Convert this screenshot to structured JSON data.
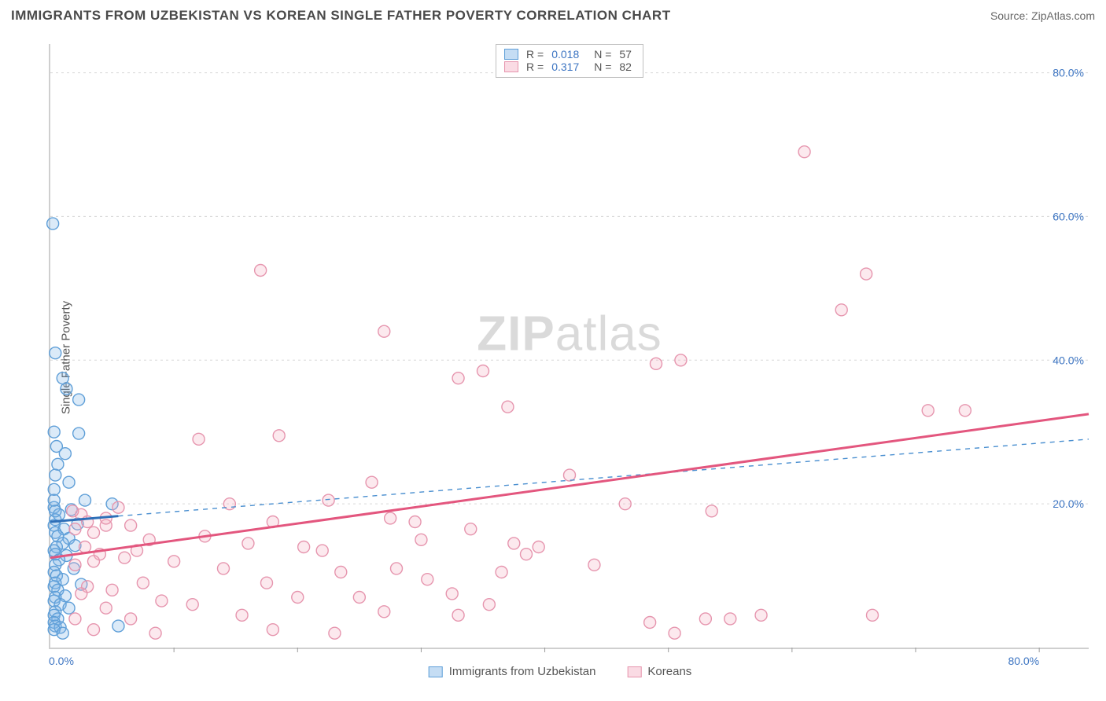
{
  "header": {
    "title": "IMMIGRANTS FROM UZBEKISTAN VS KOREAN SINGLE FATHER POVERTY CORRELATION CHART",
    "source": "Source: ZipAtlas.com"
  },
  "watermark": {
    "bold": "ZIP",
    "rest": "atlas"
  },
  "chart": {
    "type": "scatter",
    "ylabel": "Single Father Poverty",
    "background_color": "#ffffff",
    "grid_color": "#d7d7d7",
    "axis_color": "#cfcfcf",
    "tick_label_color": "#3d75c2",
    "tick_label_fontsize": 14,
    "label_fontsize": 15,
    "xlim": [
      0,
      84
    ],
    "ylim": [
      0,
      84
    ],
    "xtick_step": 10,
    "ytick_step": 20,
    "x_visible_labels": [
      {
        "v": 0,
        "t": "0.0%"
      },
      {
        "v": 80,
        "t": "80.0%"
      }
    ],
    "y_visible_labels": [
      {
        "v": 20,
        "t": "20.0%"
      },
      {
        "v": 40,
        "t": "40.0%"
      },
      {
        "v": 60,
        "t": "60.0%"
      },
      {
        "v": 80,
        "t": "80.0%"
      }
    ],
    "marker_radius": 7.5,
    "series": [
      {
        "id": "uzbek",
        "legend_label": "Immigrants from Uzbekistan",
        "R": "0.018",
        "N": "57",
        "point_fill": "rgba(127,179,230,0.28)",
        "point_stroke": "#5f9fd8",
        "reg_color": "#2e6fb8",
        "reg_solid": {
          "x1": 0,
          "y1": 17.5,
          "x2": 5.5,
          "y2": 18.3
        },
        "reg_dashed": {
          "x1": 5.5,
          "y1": 18.3,
          "x2": 84,
          "y2": 29.0
        },
        "points": [
          [
            0.2,
            59.0
          ],
          [
            0.4,
            41.0
          ],
          [
            1.0,
            37.5
          ],
          [
            1.3,
            36.0
          ],
          [
            2.3,
            34.5
          ],
          [
            0.3,
            30.0
          ],
          [
            2.3,
            29.8
          ],
          [
            0.5,
            28.0
          ],
          [
            1.2,
            27.0
          ],
          [
            0.6,
            25.5
          ],
          [
            0.4,
            24.0
          ],
          [
            1.5,
            23.0
          ],
          [
            0.3,
            22.0
          ],
          [
            5.0,
            20.0
          ],
          [
            0.3,
            19.5
          ],
          [
            1.7,
            19.2
          ],
          [
            0.7,
            18.5
          ],
          [
            2.8,
            20.5
          ],
          [
            0.4,
            17.8
          ],
          [
            0.3,
            17.0
          ],
          [
            1.1,
            16.5
          ],
          [
            2.2,
            17.2
          ],
          [
            0.4,
            16.0
          ],
          [
            0.6,
            15.5
          ],
          [
            1.5,
            15.2
          ],
          [
            1.0,
            14.5
          ],
          [
            0.5,
            14.0
          ],
          [
            2.0,
            14.2
          ],
          [
            0.3,
            13.5
          ],
          [
            0.4,
            13.0
          ],
          [
            1.3,
            12.8
          ],
          [
            0.7,
            12.2
          ],
          [
            0.4,
            11.5
          ],
          [
            1.9,
            11.0
          ],
          [
            0.3,
            10.5
          ],
          [
            0.5,
            10.0
          ],
          [
            1.0,
            9.5
          ],
          [
            0.4,
            9.0
          ],
          [
            2.5,
            8.8
          ],
          [
            0.3,
            8.5
          ],
          [
            0.6,
            8.0
          ],
          [
            1.2,
            7.2
          ],
          [
            0.4,
            7.0
          ],
          [
            0.3,
            6.5
          ],
          [
            0.8,
            6.0
          ],
          [
            1.5,
            5.5
          ],
          [
            0.4,
            5.0
          ],
          [
            0.3,
            4.5
          ],
          [
            0.6,
            4.0
          ],
          [
            0.3,
            3.5
          ],
          [
            5.5,
            3.0
          ],
          [
            0.4,
            3.0
          ],
          [
            0.8,
            2.8
          ],
          [
            0.3,
            2.5
          ],
          [
            1.0,
            2.0
          ],
          [
            0.4,
            19.0
          ],
          [
            0.3,
            20.5
          ]
        ]
      },
      {
        "id": "korean",
        "legend_label": "Koreans",
        "R": "0.317",
        "N": "82",
        "point_fill": "rgba(245,175,195,0.28)",
        "point_stroke": "#e695ae",
        "reg_color": "#e3567e",
        "reg_solid": {
          "x1": 0,
          "y1": 12.5,
          "x2": 84,
          "y2": 32.5
        },
        "points": [
          [
            61.0,
            69.0
          ],
          [
            17.0,
            52.5
          ],
          [
            66.0,
            52.0
          ],
          [
            64.0,
            47.0
          ],
          [
            27.0,
            44.0
          ],
          [
            51.0,
            40.0
          ],
          [
            49.0,
            39.5
          ],
          [
            35.0,
            38.5
          ],
          [
            33.0,
            37.5
          ],
          [
            71.0,
            33.0
          ],
          [
            74.0,
            33.0
          ],
          [
            37.0,
            33.5
          ],
          [
            18.5,
            29.5
          ],
          [
            12.0,
            29.0
          ],
          [
            42.0,
            24.0
          ],
          [
            26.0,
            23.0
          ],
          [
            22.5,
            20.5
          ],
          [
            14.5,
            20.0
          ],
          [
            46.5,
            20.0
          ],
          [
            53.5,
            19.0
          ],
          [
            2.5,
            18.5
          ],
          [
            3.0,
            17.5
          ],
          [
            4.5,
            17.0
          ],
          [
            2.0,
            16.5
          ],
          [
            3.5,
            16.0
          ],
          [
            18.0,
            17.5
          ],
          [
            27.5,
            18.0
          ],
          [
            29.5,
            17.5
          ],
          [
            34.0,
            16.5
          ],
          [
            12.5,
            15.5
          ],
          [
            8.0,
            15.0
          ],
          [
            6.5,
            17.0
          ],
          [
            16.0,
            14.5
          ],
          [
            20.5,
            14.0
          ],
          [
            22.0,
            13.5
          ],
          [
            37.5,
            14.5
          ],
          [
            39.5,
            14.0
          ],
          [
            4.0,
            13.0
          ],
          [
            6.0,
            12.5
          ],
          [
            10.0,
            12.0
          ],
          [
            2.0,
            11.5
          ],
          [
            14.0,
            11.0
          ],
          [
            23.5,
            10.5
          ],
          [
            28.0,
            11.0
          ],
          [
            30.5,
            9.5
          ],
          [
            17.5,
            9.0
          ],
          [
            7.5,
            9.0
          ],
          [
            3.0,
            8.5
          ],
          [
            5.0,
            8.0
          ],
          [
            2.5,
            7.5
          ],
          [
            20.0,
            7.0
          ],
          [
            32.5,
            7.5
          ],
          [
            25.0,
            7.0
          ],
          [
            9.0,
            6.5
          ],
          [
            11.5,
            6.0
          ],
          [
            4.5,
            5.5
          ],
          [
            27.0,
            5.0
          ],
          [
            15.5,
            4.5
          ],
          [
            33.0,
            4.5
          ],
          [
            35.5,
            6.0
          ],
          [
            6.5,
            4.0
          ],
          [
            2.0,
            4.0
          ],
          [
            53.0,
            4.0
          ],
          [
            48.5,
            3.5
          ],
          [
            66.5,
            4.5
          ],
          [
            55.0,
            4.0
          ],
          [
            57.5,
            4.5
          ],
          [
            50.5,
            2.0
          ],
          [
            18.0,
            2.5
          ],
          [
            23.0,
            2.0
          ],
          [
            3.5,
            2.5
          ],
          [
            8.5,
            2.0
          ],
          [
            38.5,
            13.0
          ],
          [
            36.5,
            10.5
          ],
          [
            4.5,
            18.0
          ],
          [
            1.8,
            19.0
          ],
          [
            2.8,
            14.0
          ],
          [
            3.5,
            12.0
          ],
          [
            5.5,
            19.5
          ],
          [
            7.0,
            13.5
          ],
          [
            30.0,
            15.0
          ],
          [
            44.0,
            11.5
          ]
        ]
      }
    ]
  },
  "stat_legend": {
    "R_label": "R =",
    "N_label": "N ="
  }
}
